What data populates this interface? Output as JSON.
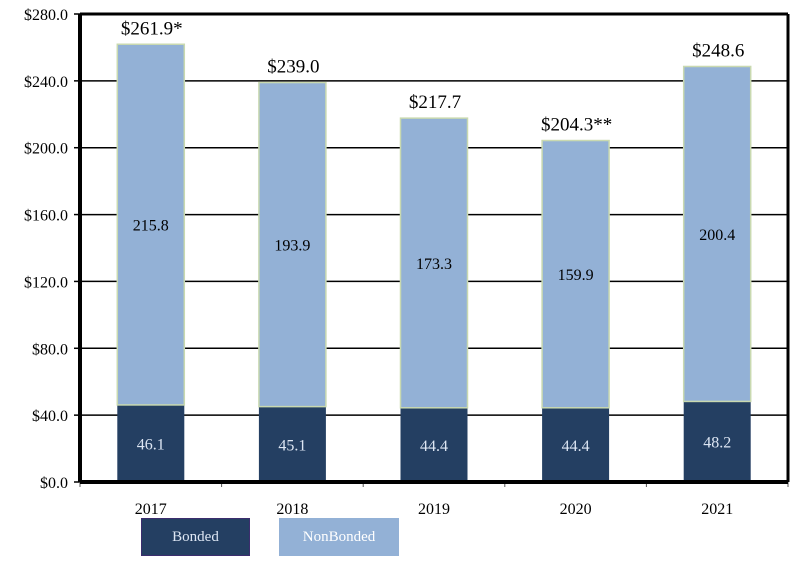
{
  "chart_data": {
    "type": "bar",
    "stacked": true,
    "title": "",
    "xlabel": "",
    "ylabel": "",
    "ylim": [
      0,
      280
    ],
    "yticks": [
      0,
      40,
      80,
      120,
      160,
      200,
      240,
      280
    ],
    "ytick_labels": [
      "$0.0",
      "$40.0",
      "$80.0",
      "$120.0",
      "$160.0",
      "$200.0",
      "$240.0",
      "$280.0"
    ],
    "grid": true,
    "categories": [
      "2017",
      "2018",
      "2019",
      "2020",
      "2021"
    ],
    "series": [
      {
        "name": "Bonded",
        "color": "#243f62",
        "label_color": "#dde6f3",
        "values": [
          46.1,
          45.1,
          44.4,
          44.4,
          48.2
        ],
        "labels": [
          "46.1",
          "45.1",
          "44.4",
          "44.4",
          "48.2"
        ]
      },
      {
        "name": "NonBonded",
        "color": "#93b1d6",
        "label_color": "#000000",
        "values": [
          215.8,
          193.9,
          173.3,
          159.9,
          200.4
        ],
        "labels": [
          "215.8",
          "193.9",
          "173.3",
          "159.9",
          "200.4"
        ]
      }
    ],
    "totals": [
      261.9,
      239.0,
      217.7,
      204.3,
      248.6
    ],
    "total_labels": [
      "$261.9*",
      "$239.0",
      "$217.7",
      "$204.3**",
      "$248.6"
    ],
    "legend": {
      "placement": "bottom",
      "items": [
        {
          "label": "Bonded",
          "color": "#243f62",
          "text_color": "#dde6f3"
        },
        {
          "label": "NonBonded",
          "color": "#93b1d6",
          "text_color": "#ffffff"
        }
      ]
    }
  }
}
